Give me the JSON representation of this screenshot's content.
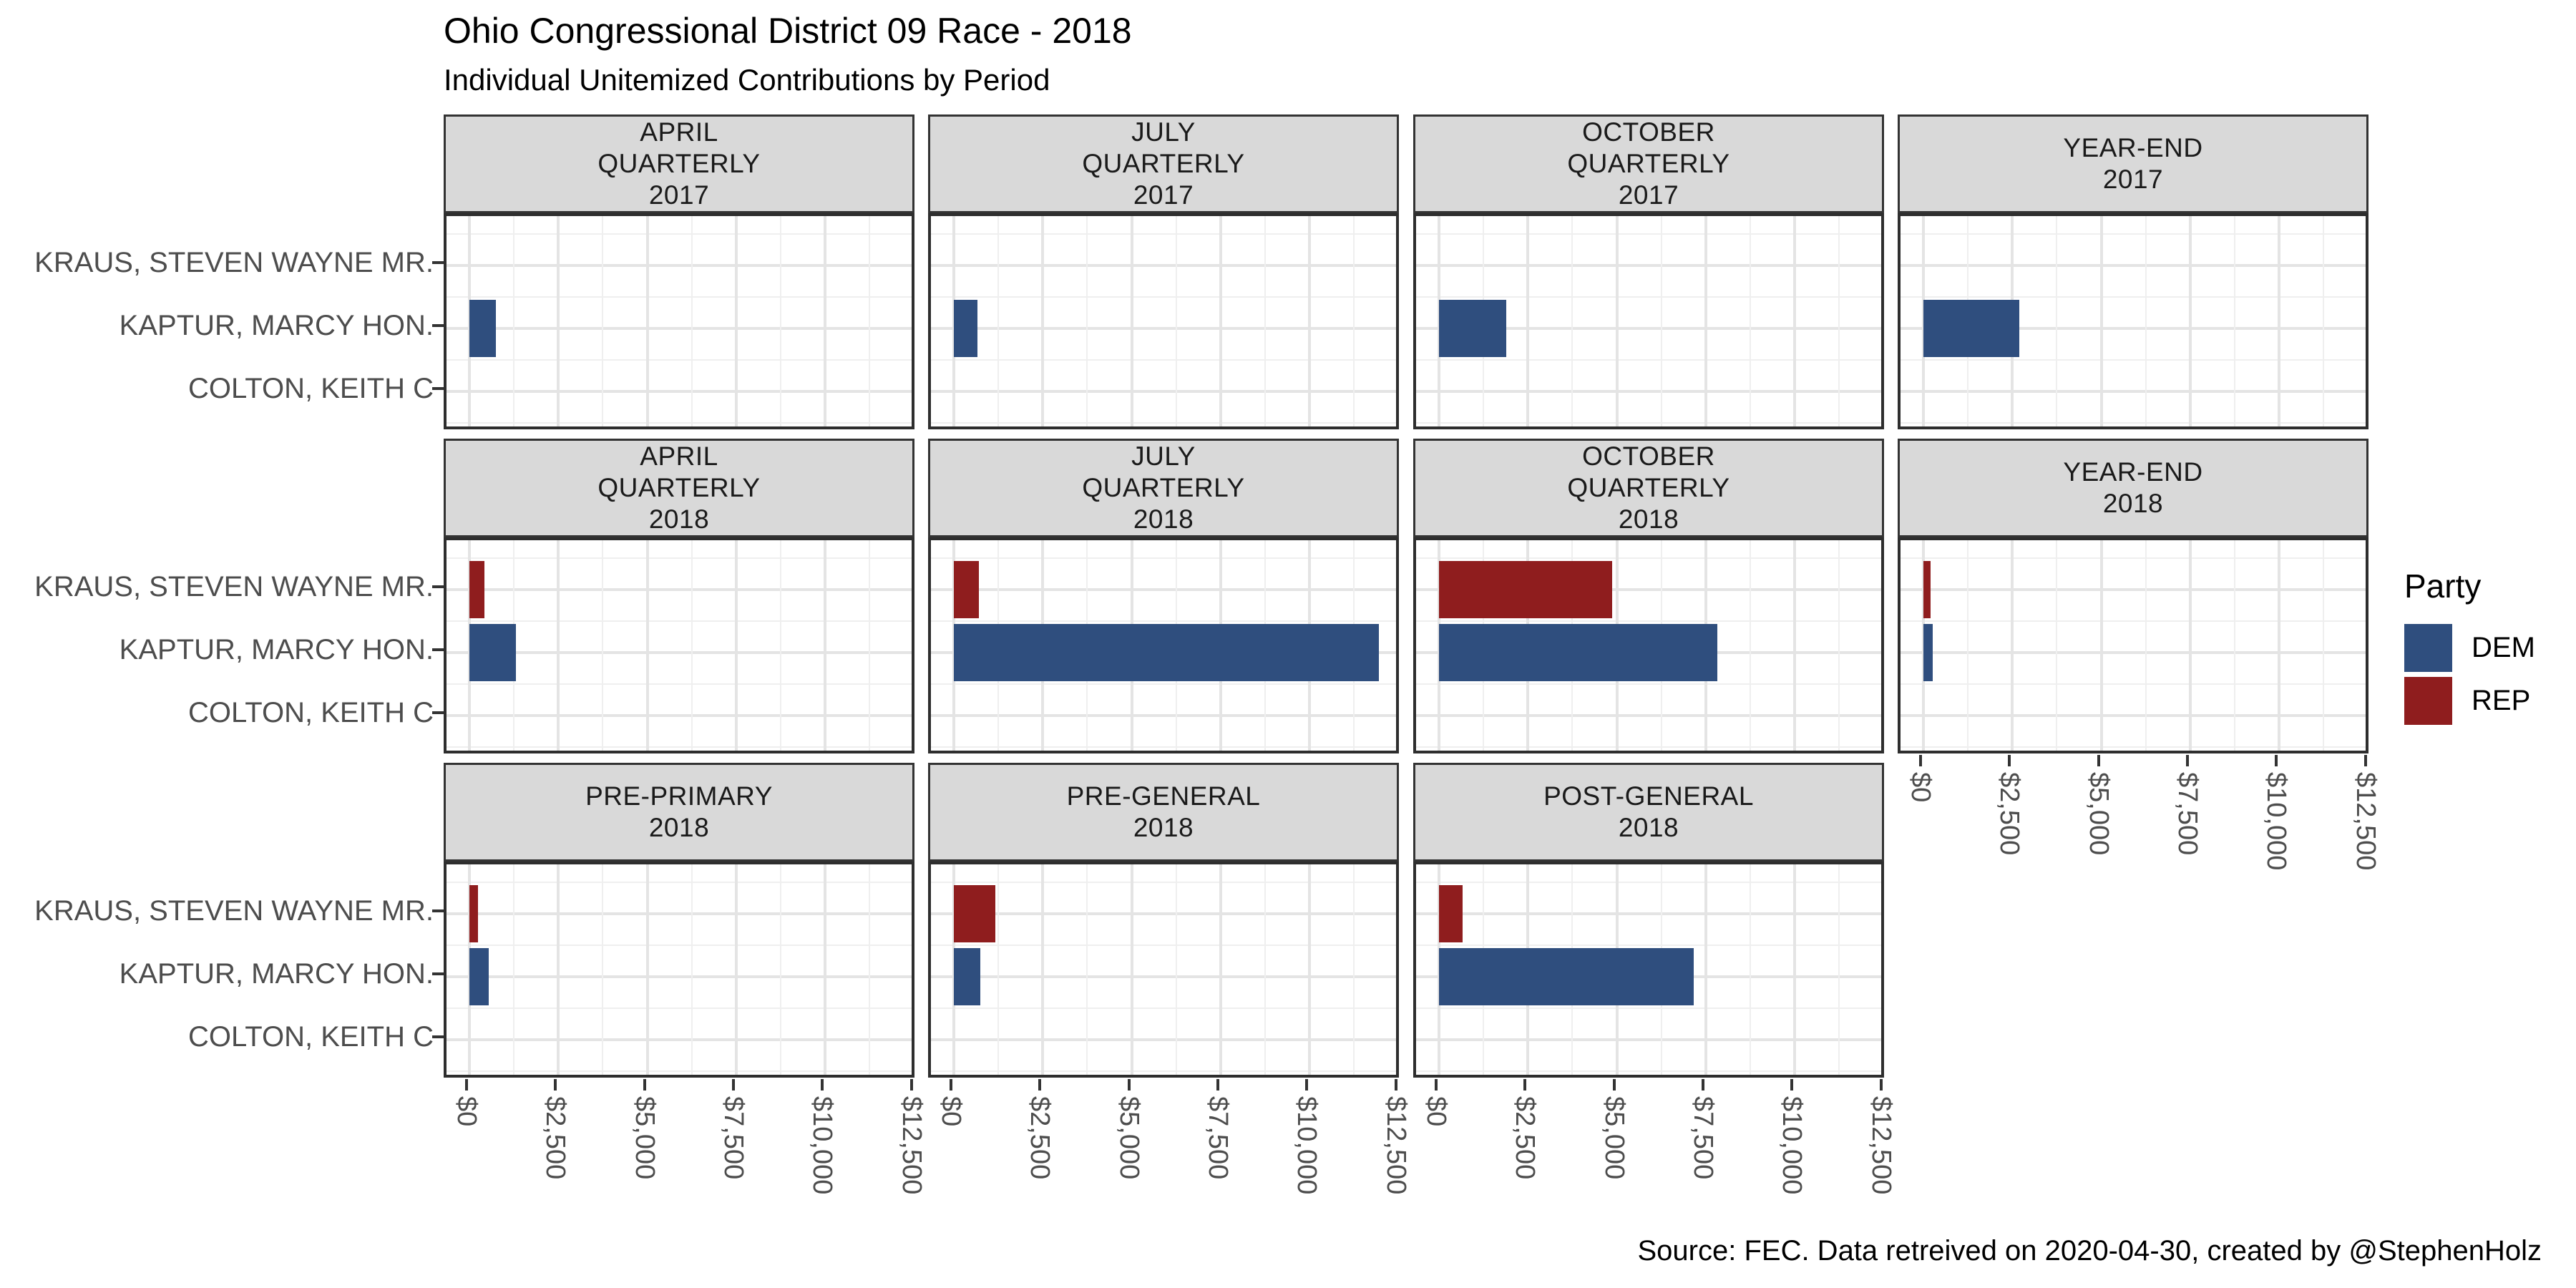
{
  "page": {
    "background": "#ffffff"
  },
  "header": {
    "title": "Ohio Congressional District 09 Race - 2018",
    "subtitle": "Individual Unitemized Contributions by Period"
  },
  "caption": "Source: FEC. Data retreived on 2020-04-30, created by @StephenHolz",
  "legend": {
    "title": "Party",
    "entries": [
      {
        "label": "DEM",
        "color": "#2f4e7e"
      },
      {
        "label": "REP",
        "color": "#8f1d1e"
      }
    ]
  },
  "chart_data": {
    "type": "bar",
    "orientation": "horizontal",
    "title": "Ohio Congressional District 09 Race - 2018",
    "subtitle": "Individual Unitemized Contributions by Period",
    "caption": "Source: FEC. Data retreived on 2020-04-30, created by @StephenHolz",
    "legend": {
      "title": "Party",
      "entries": [
        "DEM",
        "REP"
      ],
      "position": "right"
    },
    "party_colors": {
      "DEM": "#2f4e7e",
      "REP": "#8f1d1e"
    },
    "grid": "on",
    "y_categories": [
      "KRAUS, STEVEN WAYNE MR.",
      "KAPTUR, MARCY HON.",
      "COLTON, KEITH C"
    ],
    "x_axis": {
      "min": 0,
      "max": 12500,
      "major_ticks": [
        0,
        2500,
        5000,
        7500,
        10000,
        12500
      ],
      "tick_labels": [
        "$0",
        "$2,500",
        "$5,000",
        "$7,500",
        "$10,000",
        "$12,500"
      ],
      "minor_step": 1250,
      "label_rotation_deg": 90
    },
    "facets": [
      {
        "label_lines": [
          "APRIL",
          "QUARTERLY",
          "2017"
        ],
        "row": 0,
        "col": 0,
        "bars": [
          {
            "candidate": "KAPTUR, MARCY HON.",
            "party": "DEM",
            "value": 740
          }
        ]
      },
      {
        "label_lines": [
          "JULY",
          "QUARTERLY",
          "2017"
        ],
        "row": 0,
        "col": 1,
        "bars": [
          {
            "candidate": "KAPTUR, MARCY HON.",
            "party": "DEM",
            "value": 660
          }
        ]
      },
      {
        "label_lines": [
          "OCTOBER",
          "QUARTERLY",
          "2017"
        ],
        "row": 0,
        "col": 2,
        "bars": [
          {
            "candidate": "KAPTUR, MARCY HON.",
            "party": "DEM",
            "value": 1900
          }
        ]
      },
      {
        "label_lines": [
          "YEAR-END",
          "2017"
        ],
        "row": 0,
        "col": 3,
        "bars": [
          {
            "candidate": "KAPTUR, MARCY HON.",
            "party": "DEM",
            "value": 2700
          }
        ]
      },
      {
        "label_lines": [
          "APRIL",
          "QUARTERLY",
          "2018"
        ],
        "row": 1,
        "col": 0,
        "bars": [
          {
            "candidate": "KRAUS, STEVEN WAYNE MR.",
            "party": "REP",
            "value": 420
          },
          {
            "candidate": "KAPTUR, MARCY HON.",
            "party": "DEM",
            "value": 1310
          }
        ]
      },
      {
        "label_lines": [
          "JULY",
          "QUARTERLY",
          "2018"
        ],
        "row": 1,
        "col": 1,
        "bars": [
          {
            "candidate": "KRAUS, STEVEN WAYNE MR.",
            "party": "REP",
            "value": 700
          },
          {
            "candidate": "KAPTUR, MARCY HON.",
            "party": "DEM",
            "value": 11950
          }
        ]
      },
      {
        "label_lines": [
          "OCTOBER",
          "QUARTERLY",
          "2018"
        ],
        "row": 1,
        "col": 2,
        "bars": [
          {
            "candidate": "KRAUS, STEVEN WAYNE MR.",
            "party": "REP",
            "value": 4870
          },
          {
            "candidate": "KAPTUR, MARCY HON.",
            "party": "DEM",
            "value": 7820
          }
        ]
      },
      {
        "label_lines": [
          "YEAR-END",
          "2018"
        ],
        "row": 1,
        "col": 3,
        "bars": [
          {
            "candidate": "KRAUS, STEVEN WAYNE MR.",
            "party": "REP",
            "value": 200
          },
          {
            "candidate": "KAPTUR, MARCY HON.",
            "party": "DEM",
            "value": 260
          }
        ]
      },
      {
        "label_lines": [
          "PRE-PRIMARY",
          "2018"
        ],
        "row": 2,
        "col": 0,
        "bars": [
          {
            "candidate": "KRAUS, STEVEN WAYNE MR.",
            "party": "REP",
            "value": 240
          },
          {
            "candidate": "KAPTUR, MARCY HON.",
            "party": "DEM",
            "value": 540
          }
        ]
      },
      {
        "label_lines": [
          "PRE-GENERAL",
          "2018"
        ],
        "row": 2,
        "col": 1,
        "bars": [
          {
            "candidate": "KRAUS, STEVEN WAYNE MR.",
            "party": "REP",
            "value": 1160
          },
          {
            "candidate": "KAPTUR, MARCY HON.",
            "party": "DEM",
            "value": 750
          }
        ]
      },
      {
        "label_lines": [
          "POST-GENERAL",
          "2018"
        ],
        "row": 2,
        "col": 2,
        "bars": [
          {
            "candidate": "KRAUS, STEVEN WAYNE MR.",
            "party": "REP",
            "value": 670
          },
          {
            "candidate": "KAPTUR, MARCY HON.",
            "party": "DEM",
            "value": 7170
          }
        ]
      }
    ]
  }
}
